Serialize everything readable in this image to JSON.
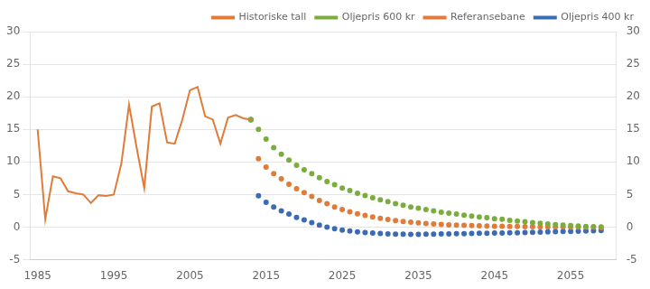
{
  "chart_data": {
    "type": "line",
    "xlim": [
      1984,
      2061
    ],
    "xticks": [
      1985,
      1995,
      2005,
      2015,
      2025,
      2035,
      2045,
      2055
    ],
    "ylim": [
      -5,
      30
    ],
    "yticks": [
      -5,
      0,
      5,
      10,
      15,
      20,
      25,
      30
    ],
    "y2lim": [
      -5,
      30
    ],
    "y2ticks": [
      -5,
      0,
      5,
      10,
      15,
      20,
      25,
      30
    ],
    "grid": "y",
    "legend": "upper right",
    "series": [
      {
        "name": "Historiske tall",
        "color": "#E07B39",
        "line_style": "solid",
        "x": [
          1985,
          1986,
          1987,
          1988,
          1989,
          1990,
          1991,
          1992,
          1993,
          1994,
          1995,
          1996,
          1997,
          1998,
          1999,
          2000,
          2001,
          2002,
          2003,
          2004,
          2005,
          2006,
          2007,
          2008,
          2009,
          2010,
          2011,
          2012,
          2013
        ],
        "values": [
          15.0,
          1.2,
          7.8,
          7.5,
          5.5,
          5.2,
          5.0,
          3.7,
          4.9,
          4.8,
          5.0,
          9.8,
          18.8,
          12.2,
          6.0,
          18.5,
          19.0,
          13.0,
          12.8,
          16.5,
          21.0,
          21.5,
          17.0,
          16.5,
          12.8,
          16.8,
          17.2,
          16.7,
          16.5
        ]
      },
      {
        "name": "Oljepris 600 kr",
        "color": "#7AAD3D",
        "line_style": "none",
        "marker": "circle",
        "x": [
          2013,
          2014,
          2015,
          2016,
          2017,
          2018,
          2019,
          2020,
          2021,
          2022,
          2023,
          2024,
          2025,
          2026,
          2027,
          2028,
          2029,
          2030,
          2031,
          2032,
          2033,
          2034,
          2035,
          2036,
          2037,
          2038,
          2039,
          2040,
          2041,
          2042,
          2043,
          2044,
          2045,
          2046,
          2047,
          2048,
          2049,
          2050,
          2051,
          2052,
          2053,
          2054,
          2055,
          2056,
          2057,
          2058,
          2059
        ],
        "values": [
          16.5,
          15.0,
          13.5,
          12.2,
          11.2,
          10.3,
          9.5,
          8.8,
          8.2,
          7.6,
          7.0,
          6.5,
          6.0,
          5.6,
          5.2,
          4.85,
          4.5,
          4.2,
          3.9,
          3.6,
          3.35,
          3.1,
          2.9,
          2.7,
          2.5,
          2.3,
          2.15,
          2.0,
          1.85,
          1.7,
          1.55,
          1.45,
          1.3,
          1.2,
          1.05,
          0.95,
          0.82,
          0.7,
          0.6,
          0.5,
          0.4,
          0.32,
          0.25,
          0.18,
          0.12,
          0.07,
          0.02
        ]
      },
      {
        "name": "Referansebane",
        "color": "#E07B39",
        "line_style": "none",
        "marker": "circle",
        "x": [
          2013,
          2014,
          2015,
          2016,
          2017,
          2018,
          2019,
          2020,
          2021,
          2022,
          2023,
          2024,
          2025,
          2026,
          2027,
          2028,
          2029,
          2030,
          2031,
          2032,
          2033,
          2034,
          2035,
          2036,
          2037,
          2038,
          2039,
          2040,
          2041,
          2042,
          2043,
          2044,
          2045,
          2046,
          2047,
          2048,
          2049,
          2050,
          2051,
          2052,
          2053,
          2054,
          2055,
          2056,
          2057,
          2058,
          2059
        ],
        "values": [
          16.5,
          10.5,
          9.2,
          8.2,
          7.4,
          6.6,
          5.9,
          5.3,
          4.7,
          4.1,
          3.6,
          3.1,
          2.7,
          2.35,
          2.05,
          1.8,
          1.55,
          1.35,
          1.18,
          1.02,
          0.88,
          0.76,
          0.65,
          0.56,
          0.48,
          0.42,
          0.36,
          0.31,
          0.27,
          0.23,
          0.2,
          0.17,
          0.15,
          0.13,
          0.11,
          0.09,
          0.07,
          0.06,
          0.05,
          0.04,
          0.03,
          0.02,
          0.01,
          0.01,
          0.0,
          0.0,
          -0.05
        ]
      },
      {
        "name": "Oljepris 400 kr",
        "color": "#3B6BB5",
        "line_style": "none",
        "marker": "circle",
        "x": [
          2013,
          2014,
          2015,
          2016,
          2017,
          2018,
          2019,
          2020,
          2021,
          2022,
          2023,
          2024,
          2025,
          2026,
          2027,
          2028,
          2029,
          2030,
          2031,
          2032,
          2033,
          2034,
          2035,
          2036,
          2037,
          2038,
          2039,
          2040,
          2041,
          2042,
          2043,
          2044,
          2045,
          2046,
          2047,
          2048,
          2049,
          2050,
          2051,
          2052,
          2053,
          2054,
          2055,
          2056,
          2057,
          2058,
          2059
        ],
        "values": [
          16.5,
          4.8,
          3.8,
          3.1,
          2.5,
          2.0,
          1.5,
          1.1,
          0.7,
          0.3,
          0.0,
          -0.25,
          -0.45,
          -0.6,
          -0.72,
          -0.82,
          -0.9,
          -0.97,
          -1.02,
          -1.06,
          -1.08,
          -1.09,
          -1.09,
          -1.08,
          -1.07,
          -1.05,
          -1.03,
          -1.01,
          -0.99,
          -0.97,
          -0.95,
          -0.93,
          -0.91,
          -0.89,
          -0.87,
          -0.85,
          -0.82,
          -0.79,
          -0.76,
          -0.73,
          -0.7,
          -0.67,
          -0.64,
          -0.61,
          -0.58,
          -0.55,
          -0.52
        ]
      }
    ]
  }
}
